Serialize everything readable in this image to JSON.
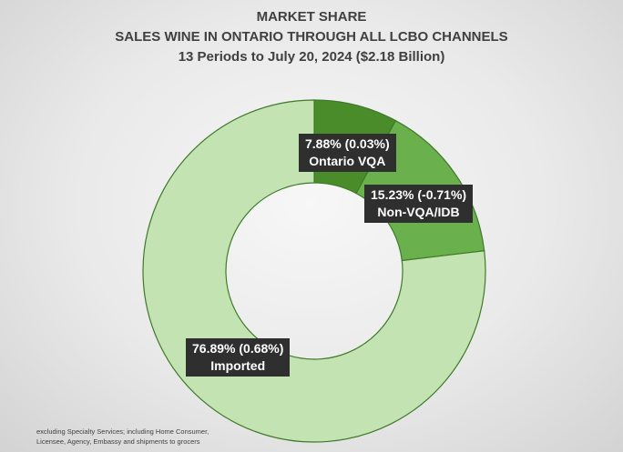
{
  "chart_data": {
    "type": "pie",
    "title_lines": [
      "MARKET SHARE",
      "SALES WINE IN ONTARIO THROUGH ALL LCBO CHANNELS",
      "13 Periods to July 20, 2024 ($2.18 Billion)"
    ],
    "style": "donut",
    "slices": [
      {
        "label": "Ontario VQA",
        "value": 7.88,
        "change_label": "7.88% (0.03%)",
        "color": "#4a8c2a"
      },
      {
        "label": "Non-VQA/IDB",
        "value": 15.23,
        "change_label": "15.23% (-0.71%)",
        "color": "#6ab04c"
      },
      {
        "label": "Imported",
        "value": 76.89,
        "change_label": "76.89% (0.68%)",
        "color": "#c4e3b3"
      }
    ],
    "slice_border_color": "#3f7a2a",
    "footnote_lines": [
      "excluding Specialty Services; including Home Consumer,",
      "Licensee, Agency, Embassy and shipments to grocers"
    ]
  }
}
